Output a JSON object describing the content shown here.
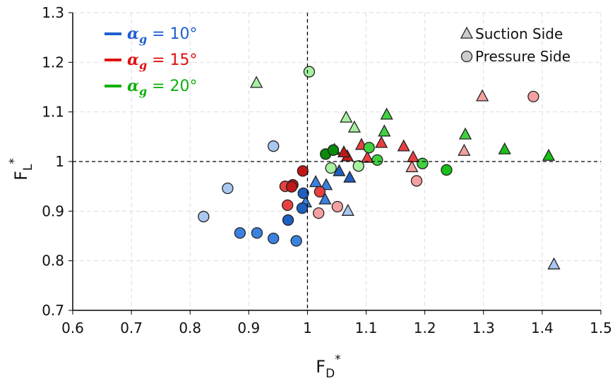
{
  "chart_data": {
    "type": "scatter",
    "xlabel": {
      "base": "F",
      "sub": "D",
      "sup": "*"
    },
    "ylabel": {
      "base": "F",
      "sub": "L",
      "sup": "*"
    },
    "xlim": [
      0.6,
      1.5
    ],
    "ylim": [
      0.7,
      1.3
    ],
    "xticks": [
      0.6,
      0.7,
      0.8,
      0.9,
      1,
      1.1,
      1.2,
      1.3,
      1.4,
      1.5
    ],
    "yticks": [
      0.7,
      0.8,
      0.9,
      1,
      1.1,
      1.2,
      1.3
    ],
    "grid": true,
    "reference_lines": {
      "x": 1,
      "y": 1
    },
    "markers_legend": {
      "suction": "Suction Side",
      "pressure": "Pressure Side"
    },
    "groups": [
      {
        "symbol": "α",
        "subscript": "g",
        "text": " = 10°",
        "color": "#1f5fd0",
        "suction": {
          "x": [
            1.014,
            1.032,
            1.03,
            1.054,
            1.072,
            0.997,
            1.069,
            1.42
          ],
          "y": [
            0.958,
            0.952,
            0.923,
            0.98,
            0.967,
            0.917,
            0.9,
            0.792
          ],
          "colors": [
            "#3b82e0",
            "#3b82e0",
            "#3b82e0",
            "#1f5fbf",
            "#1f5fbf",
            "#3b82e0",
            "#a9c8f0",
            "#a9c8f0"
          ]
        },
        "pressure": {
          "x": [
            0.823,
            0.864,
            0.885,
            0.914,
            0.942,
            0.981,
            0.967,
            0.991,
            0.993,
            0.942
          ],
          "y": [
            0.889,
            0.946,
            0.856,
            0.856,
            0.845,
            0.84,
            0.882,
            0.906,
            0.936,
            1.031
          ],
          "colors": [
            "#a9c8f0",
            "#a9c8f0",
            "#3b82e0",
            "#3b82e0",
            "#3b82e0",
            "#3b82e0",
            "#1f5fbf",
            "#1f5fbf",
            "#1f5fbf",
            "#a9c8f0"
          ]
        }
      },
      {
        "symbol": "α",
        "subscript": "g",
        "text": " = 15°",
        "color": "#e01010",
        "suction": {
          "x": [
            1.298,
            1.267,
            1.178,
            1.18,
            1.164,
            1.126,
            1.092,
            1.102,
            1.068,
            1.062
          ],
          "y": [
            1.131,
            1.021,
            0.988,
            1.008,
            1.03,
            1.037,
            1.033,
            1.007,
            1.01,
            1.018
          ],
          "colors": [
            "#f4a0a0",
            "#f4a0a0",
            "#f4a0a0",
            "#e84040",
            "#e84040",
            "#e84040",
            "#e84040",
            "#e84040",
            "#c01818",
            "#c01818"
          ]
        },
        "pressure": {
          "x": [
            1.385,
            1.186,
            1.019,
            1.051,
            1.021,
            0.966,
            0.962,
            0.975,
            0.973,
            0.992
          ],
          "y": [
            1.131,
            0.961,
            0.896,
            0.909,
            0.939,
            0.912,
            0.95,
            0.953,
            0.949,
            0.981
          ],
          "colors": [
            "#f4a0a0",
            "#f4a0a0",
            "#f4a0a0",
            "#f4a0a0",
            "#e84040",
            "#e84040",
            "#e84040",
            "#c01818",
            "#c01818",
            "#c01818"
          ]
        }
      },
      {
        "symbol": "α",
        "subscript": "g",
        "text": " = 20°",
        "color": "#10b010",
        "suction": {
          "x": [
            0.913,
            1.066,
            1.08,
            1.135,
            1.131,
            1.269,
            1.336,
            1.411,
            1.046
          ],
          "y": [
            1.158,
            1.088,
            1.068,
            1.094,
            1.06,
            1.054,
            1.024,
            1.011,
            1.023
          ],
          "colors": [
            "#a6f0a0",
            "#a6f0a0",
            "#a6f0a0",
            "#40d040",
            "#40d040",
            "#40d040",
            "#18c018",
            "#18c018",
            "#0a8a0a"
          ]
        },
        "pressure": {
          "x": [
            1.003,
            1.04,
            1.087,
            1.105,
            1.119,
            1.196,
            1.237,
            1.031,
            1.044
          ],
          "y": [
            1.181,
            0.987,
            0.991,
            1.028,
            1.003,
            0.996,
            0.983,
            1.015,
            1.023
          ],
          "colors": [
            "#a6f0a0",
            "#a6f0a0",
            "#a6f0a0",
            "#40d040",
            "#40d040",
            "#40d040",
            "#18c018",
            "#0a8a0a",
            "#0a8a0a"
          ]
        }
      }
    ]
  }
}
